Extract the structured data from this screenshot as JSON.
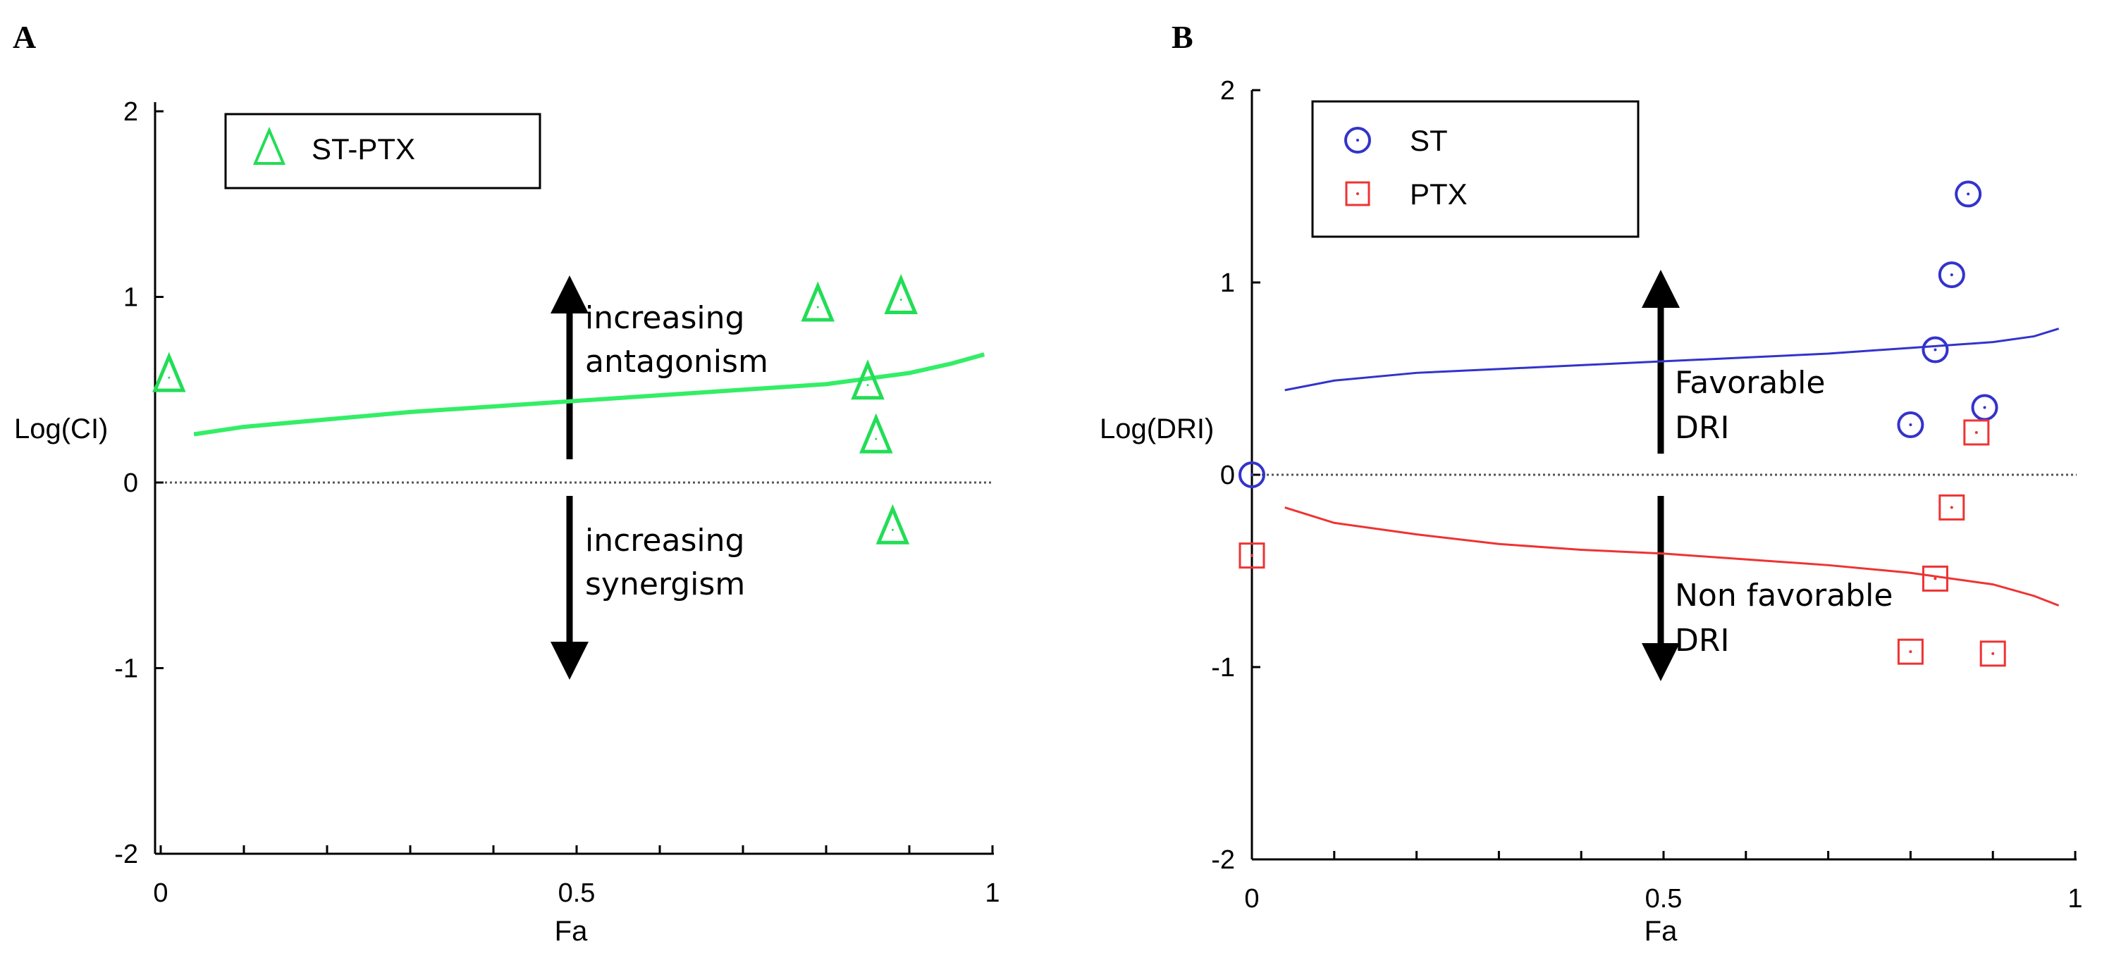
{
  "colors": {
    "st_pts": "#22dd55",
    "st_pts_line": "#33ee66",
    "st": "#3333cc",
    "ptx": "#ee3333",
    "axis": "#000000"
  },
  "chart_data": [
    {
      "panel": "A",
      "type": "scatter",
      "xlabel": "Fa",
      "ylabel": "Log(CI)",
      "xlim": [
        0,
        1
      ],
      "ylim": [
        -2,
        2
      ],
      "x_ticks": [
        0,
        0.5,
        1
      ],
      "x_tick_labels": [
        "0",
        "0.5",
        "1"
      ],
      "y_ticks": [
        -2,
        -1,
        0,
        1,
        2
      ],
      "y_tick_labels": [
        "-2",
        "-1",
        "0",
        "1",
        "2"
      ],
      "reference_line": 0,
      "legend": [
        {
          "label": "ST-PTX",
          "marker": "triangle",
          "color": "#22dd55"
        }
      ],
      "series": [
        {
          "name": "ST-PTX",
          "type": "scatter",
          "marker": "triangle",
          "x": [
            0.01,
            0.79,
            0.85,
            0.86,
            0.88,
            0.89
          ],
          "y": [
            0.58,
            0.96,
            0.54,
            0.25,
            -0.24,
            1.0
          ]
        },
        {
          "name": "ST-PTX fit",
          "type": "line",
          "x": [
            0.04,
            0.1,
            0.2,
            0.3,
            0.4,
            0.5,
            0.6,
            0.7,
            0.8,
            0.85,
            0.9,
            0.95,
            0.99
          ],
          "y": [
            0.26,
            0.3,
            0.34,
            0.38,
            0.41,
            0.44,
            0.47,
            0.5,
            0.53,
            0.56,
            0.59,
            0.64,
            0.69
          ]
        }
      ],
      "annotations": {
        "up": [
          "increasing",
          "antagonism"
        ],
        "down": [
          "increasing",
          "synergism"
        ]
      }
    },
    {
      "panel": "B",
      "type": "scatter",
      "xlabel": "Fa",
      "ylabel": "Log(DRI)",
      "xlim": [
        0,
        1
      ],
      "ylim": [
        -2,
        2
      ],
      "x_ticks": [
        0,
        0.5,
        1
      ],
      "x_tick_labels": [
        "0",
        "0.5",
        "1"
      ],
      "y_ticks": [
        -2,
        -1,
        0,
        1,
        2
      ],
      "y_tick_labels": [
        "-2",
        "-1",
        "0",
        "1",
        "2"
      ],
      "reference_line": 0,
      "legend": [
        {
          "label": "ST",
          "marker": "circle",
          "color": "#3333cc"
        },
        {
          "label": "PTX",
          "marker": "square",
          "color": "#ee3333"
        }
      ],
      "series": [
        {
          "name": "ST",
          "type": "scatter",
          "marker": "circle",
          "x": [
            0.0,
            0.8,
            0.83,
            0.85,
            0.87,
            0.89
          ],
          "y": [
            0.0,
            0.26,
            0.65,
            1.04,
            1.46,
            0.35
          ]
        },
        {
          "name": "PTX",
          "type": "scatter",
          "marker": "square",
          "x": [
            0.0,
            0.8,
            0.83,
            0.85,
            0.88,
            0.9
          ],
          "y": [
            -0.42,
            -0.92,
            -0.54,
            -0.17,
            0.22,
            -0.93
          ]
        },
        {
          "name": "ST fit",
          "type": "line",
          "x": [
            0.04,
            0.1,
            0.2,
            0.3,
            0.4,
            0.5,
            0.6,
            0.7,
            0.8,
            0.9,
            0.95,
            0.98
          ],
          "y": [
            0.44,
            0.49,
            0.53,
            0.55,
            0.57,
            0.59,
            0.61,
            0.63,
            0.66,
            0.69,
            0.72,
            0.76
          ]
        },
        {
          "name": "PTX fit",
          "type": "line",
          "x": [
            0.04,
            0.1,
            0.2,
            0.3,
            0.4,
            0.5,
            0.6,
            0.7,
            0.8,
            0.9,
            0.95,
            0.98
          ],
          "y": [
            -0.17,
            -0.25,
            -0.31,
            -0.36,
            -0.39,
            -0.41,
            -0.44,
            -0.47,
            -0.51,
            -0.57,
            -0.63,
            -0.68
          ]
        }
      ],
      "annotations": {
        "up": [
          "Favorable",
          "DRI"
        ],
        "down": [
          "Non favorable",
          "DRI"
        ]
      }
    }
  ]
}
